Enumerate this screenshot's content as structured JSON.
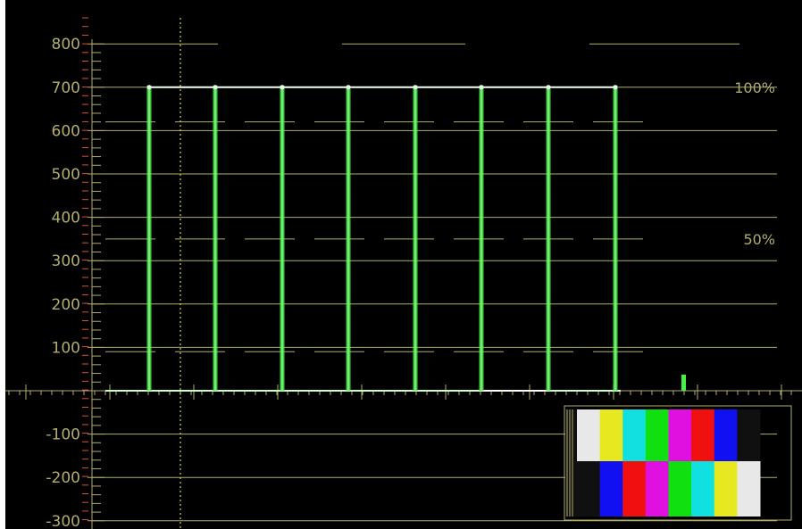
{
  "scope": {
    "type": "waveform-monitor",
    "signal": "SMPTE color bars",
    "y_axis_labels": [
      "800",
      "700",
      "600",
      "500",
      "400",
      "300",
      "200",
      "100",
      "-100",
      "-200",
      "-300"
    ],
    "y_axis_values": [
      800,
      700,
      600,
      500,
      400,
      300,
      200,
      100,
      -100,
      -200,
      -300
    ],
    "y_range": [
      -300,
      800
    ],
    "percent_markers": [
      {
        "label": "100%",
        "value": 700
      },
      {
        "label": "50%",
        "value": 350
      }
    ],
    "waveform_bar_levels": [
      700,
      700,
      700,
      700,
      700,
      700,
      700,
      700
    ],
    "trace_color": "#46f046",
    "graticule_color": "#b2ad6a",
    "reticle_color": "#e05030",
    "background_color": "#000000"
  },
  "thumbnail": {
    "top_bars": [
      "#e8e8e8",
      "#e8e820",
      "#10e0e0",
      "#10e010",
      "#e010e0",
      "#f01010",
      "#1010f0",
      "#101010"
    ],
    "bottom_bars": [
      "#101010",
      "#1010f0",
      "#f01010",
      "#e010e0",
      "#10e010",
      "#10e0e0",
      "#e8e820",
      "#e8e8e8"
    ]
  }
}
